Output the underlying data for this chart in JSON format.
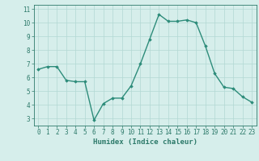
{
  "title": "",
  "xlabel": "Humidex (Indice chaleur)",
  "ylabel": "",
  "x": [
    0,
    1,
    2,
    3,
    4,
    5,
    6,
    7,
    8,
    9,
    10,
    11,
    12,
    13,
    14,
    15,
    16,
    17,
    18,
    19,
    20,
    21,
    22,
    23
  ],
  "y": [
    6.6,
    6.8,
    6.8,
    5.8,
    5.7,
    5.7,
    2.9,
    4.1,
    4.5,
    4.5,
    5.4,
    7.0,
    8.8,
    10.6,
    10.1,
    10.1,
    10.2,
    10.0,
    8.3,
    6.3,
    5.3,
    5.2,
    4.6,
    4.2
  ],
  "line_color": "#2d8c7a",
  "marker": "D",
  "marker_size": 1.8,
  "bg_color": "#d6eeeb",
  "grid_color": "#b2d8d4",
  "tick_color": "#2d7a6a",
  "spine_color": "#2d7a6a",
  "xlim": [
    -0.5,
    23.5
  ],
  "ylim": [
    2.5,
    11.3
  ],
  "yticks": [
    3,
    4,
    5,
    6,
    7,
    8,
    9,
    10,
    11
  ],
  "xticks": [
    0,
    1,
    2,
    3,
    4,
    5,
    6,
    7,
    8,
    9,
    10,
    11,
    12,
    13,
    14,
    15,
    16,
    17,
    18,
    19,
    20,
    21,
    22,
    23
  ],
  "xlabel_fontsize": 6.5,
  "tick_fontsize": 5.5,
  "linewidth": 1.0
}
